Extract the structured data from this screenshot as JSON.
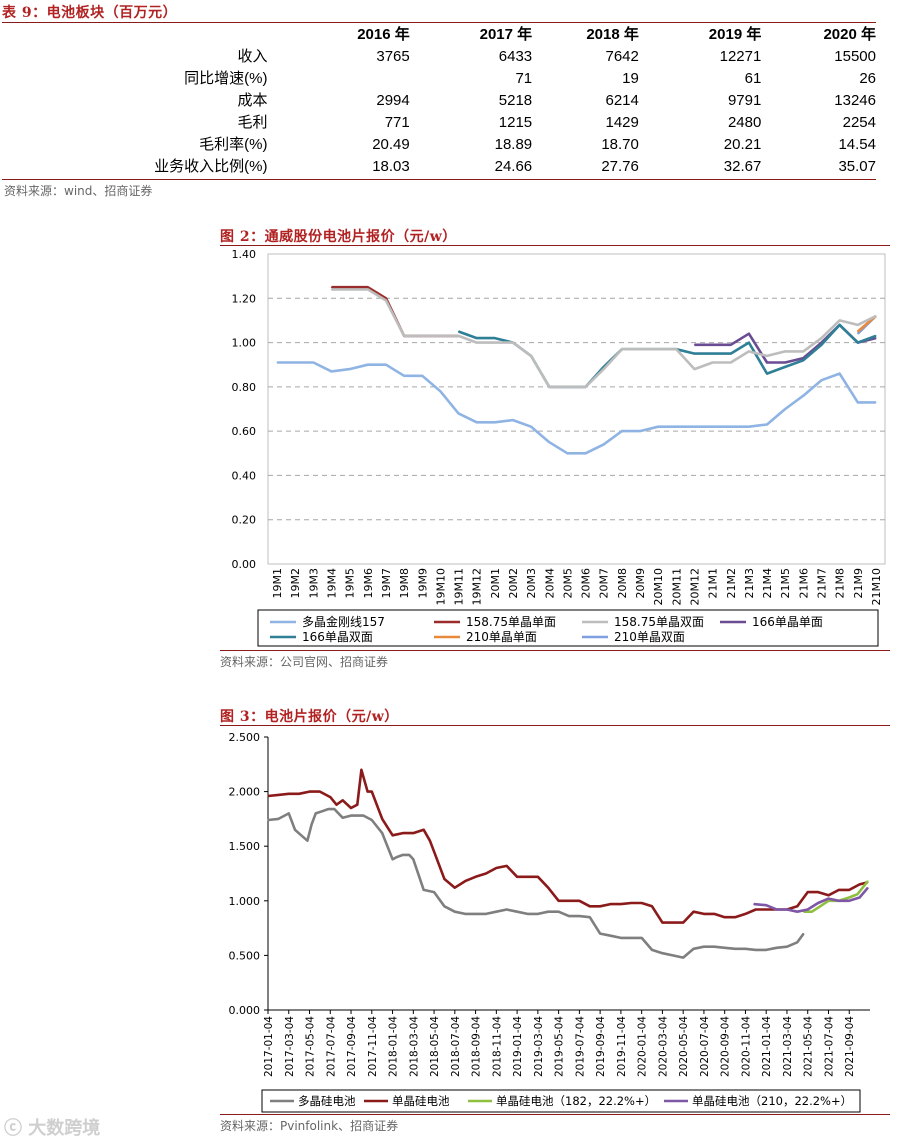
{
  "table": {
    "title": "表 9：电池板块（百万元）",
    "columns": [
      "2016 年",
      "2017 年",
      "2018 年",
      "2019 年",
      "2020 年"
    ],
    "rows": [
      {
        "label": "收入",
        "values": [
          "3765",
          "6433",
          "7642",
          "12271",
          "15500"
        ]
      },
      {
        "label": "同比增速(%)",
        "values": [
          "",
          "71",
          "19",
          "61",
          "26"
        ]
      },
      {
        "label": "成本",
        "values": [
          "2994",
          "5218",
          "6214",
          "9791",
          "13246"
        ]
      },
      {
        "label": "毛利",
        "values": [
          "771",
          "1215",
          "1429",
          "2480",
          "2254"
        ]
      },
      {
        "label": "毛利率(%)",
        "values": [
          "20.49",
          "18.89",
          "18.70",
          "20.21",
          "14.54"
        ]
      },
      {
        "label": "业务收入比例(%)",
        "values": [
          "18.03",
          "24.66",
          "27.76",
          "32.67",
          "35.07"
        ]
      }
    ],
    "source": "资料来源：wind、招商证券"
  },
  "figure2": {
    "title": "图 2：通威股份电池片报价（元/w）",
    "source": "资料来源：公司官网、招商证券"
  },
  "figure3": {
    "title": "图 3：电池片报价（元/w）",
    "source": "资料来源：Pvinfolink、招商证券"
  },
  "watermark": "大数跨境",
  "colors": {
    "accent": "#b22222",
    "s_poly157": "#8fb4e3",
    "s_15875_mono": "#9b2c2c",
    "s_15875_bi": "#bdbdbd",
    "s_166_mono": "#6a4c93",
    "s_166_bi": "#2f7f96",
    "s_210_mono": "#e8893b",
    "s_210_bi": "#7f9fe0",
    "s_poly": "#7f7f7f",
    "s_mono": "#8b1a1a",
    "s_mono182": "#8fbf3f",
    "s_mono210": "#7e57a6"
  },
  "chart_data": [
    {
      "type": "line",
      "title": "通威股份电池片报价（元/w）",
      "ylim": [
        0,
        1.4
      ],
      "yticks": [
        "0.00",
        "0.20",
        "0.40",
        "0.60",
        "0.80",
        "1.00",
        "1.20",
        "1.40"
      ],
      "categories": [
        "19M1",
        "19M2",
        "19M3",
        "19M4",
        "19M5",
        "19M6",
        "19M7",
        "19M8",
        "19M9",
        "19M10",
        "19M11",
        "19M12",
        "20M1",
        "20M2",
        "20M3",
        "20M4",
        "20M5",
        "20M6",
        "20M7",
        "20M8",
        "20M9",
        "20M10",
        "20M11",
        "20M12",
        "21M1",
        "21M2",
        "21M3",
        "21M4",
        "21M5",
        "21M6",
        "21M7",
        "21M8",
        "21M9",
        "21M10"
      ],
      "series": [
        {
          "name": "多晶金刚线157",
          "color_key": "s_poly157",
          "values": [
            0.91,
            0.91,
            0.91,
            0.87,
            0.88,
            0.9,
            0.9,
            0.85,
            0.85,
            0.78,
            0.68,
            0.64,
            0.64,
            0.65,
            0.62,
            0.55,
            0.5,
            0.5,
            0.54,
            0.6,
            0.6,
            0.62,
            0.62,
            0.62,
            0.62,
            0.62,
            0.62,
            0.63,
            0.7,
            0.76,
            0.83,
            0.86,
            0.73,
            0.73
          ]
        },
        {
          "name": "158.75单晶单面",
          "color_key": "s_15875_mono",
          "values": [
            null,
            null,
            null,
            1.25,
            1.25,
            1.25,
            1.2,
            1.03,
            1.03,
            1.03,
            1.03,
            null,
            null,
            null,
            null,
            null,
            null,
            null,
            null,
            null,
            null,
            null,
            null,
            null,
            null,
            null,
            null,
            null,
            null,
            null,
            null,
            null,
            null,
            null
          ]
        },
        {
          "name": "158.75单晶双面",
          "color_key": "s_15875_bi",
          "values": [
            null,
            null,
            null,
            1.24,
            1.24,
            1.24,
            1.19,
            1.03,
            1.03,
            1.03,
            1.03,
            1.0,
            1.0,
            1.0,
            0.94,
            0.8,
            0.8,
            0.8,
            0.88,
            0.97,
            0.97,
            0.97,
            0.97,
            0.88,
            0.91,
            0.91,
            0.96,
            0.94,
            0.96,
            0.96,
            1.02,
            1.1,
            1.08,
            1.12
          ]
        },
        {
          "name": "166单晶单面",
          "color_key": "s_166_mono",
          "values": [
            null,
            null,
            null,
            null,
            null,
            null,
            null,
            null,
            null,
            null,
            null,
            null,
            null,
            null,
            null,
            null,
            null,
            null,
            null,
            null,
            null,
            null,
            null,
            0.99,
            0.99,
            0.99,
            1.04,
            0.91,
            0.91,
            0.93,
            1.0,
            1.08,
            1.0,
            1.02
          ]
        },
        {
          "name": "166单晶双面",
          "color_key": "s_166_bi",
          "values": [
            null,
            null,
            null,
            null,
            null,
            null,
            null,
            null,
            null,
            null,
            1.05,
            1.02,
            1.02,
            1.0,
            0.94,
            0.8,
            0.8,
            0.8,
            0.89,
            0.97,
            0.97,
            0.97,
            0.97,
            0.95,
            0.95,
            0.95,
            1.0,
            0.86,
            0.89,
            0.92,
            0.99,
            1.08,
            1.0,
            1.03
          ]
        },
        {
          "name": "210单晶单面",
          "color_key": "s_210_mono",
          "values": [
            null,
            null,
            null,
            null,
            null,
            null,
            null,
            null,
            null,
            null,
            null,
            null,
            null,
            null,
            null,
            null,
            null,
            null,
            null,
            null,
            null,
            null,
            null,
            null,
            null,
            null,
            null,
            null,
            null,
            null,
            null,
            null,
            1.05,
            1.12
          ]
        },
        {
          "name": "210单晶双面",
          "color_key": "s_210_bi",
          "values": [
            null,
            null,
            null,
            null,
            null,
            null,
            null,
            null,
            null,
            null,
            null,
            null,
            null,
            null,
            null,
            null,
            null,
            null,
            null,
            null,
            null,
            null,
            null,
            null,
            null,
            null,
            null,
            null,
            null,
            null,
            null,
            null,
            1.04,
            1.12
          ]
        }
      ],
      "legend": "bottom"
    },
    {
      "type": "line",
      "title": "电池片报价（元/w）",
      "ylim": [
        0,
        2.5
      ],
      "yticks": [
        "0.000",
        "0.500",
        "1.000",
        "1.500",
        "2.000",
        "2.500"
      ],
      "x_tick_labels": [
        "2017-01-04",
        "2017-03-04",
        "2017-05-04",
        "2017-07-04",
        "2017-09-04",
        "2017-11-04",
        "2018-01-04",
        "2018-03-04",
        "2018-05-04",
        "2018-07-04",
        "2018-09-04",
        "2018-11-04",
        "2019-01-04",
        "2019-03-04",
        "2019-05-04",
        "2019-07-04",
        "2019-09-04",
        "2019-11-04",
        "2020-01-04",
        "2020-03-04",
        "2020-05-04",
        "2020-07-04",
        "2020-09-04",
        "2020-11-04",
        "2021-01-04",
        "2021-03-04",
        "2021-05-04",
        "2021-07-04",
        "2021-09-04"
      ],
      "series": [
        {
          "name": "多晶硅电池",
          "color_key": "s_poly",
          "x": [
            0,
            0.5,
            1,
            1.3,
            1.6,
            1.9,
            2.1,
            2.3,
            2.6,
            2.9,
            3.2,
            3.6,
            4,
            4.3,
            4.6,
            5,
            5.5,
            6,
            6.2,
            6.5,
            6.8,
            7,
            7.5,
            8,
            8.5,
            9,
            9.5,
            10,
            10.5,
            11,
            11.5,
            12,
            12.5,
            13,
            13.5,
            14,
            14.5,
            15,
            15.5,
            16,
            16.5,
            17,
            17.5,
            18,
            18.5,
            19,
            19.5,
            20,
            20.5,
            21,
            21.5,
            22,
            22.5,
            23,
            23.5,
            24,
            24.5,
            25,
            25.5,
            25.8
          ],
          "values": [
            1.74,
            1.75,
            1.8,
            1.65,
            1.6,
            1.55,
            1.7,
            1.8,
            1.82,
            1.84,
            1.84,
            1.76,
            1.78,
            1.78,
            1.78,
            1.74,
            1.62,
            1.38,
            1.4,
            1.42,
            1.42,
            1.38,
            1.1,
            1.08,
            0.95,
            0.9,
            0.88,
            0.88,
            0.88,
            0.9,
            0.92,
            0.9,
            0.88,
            0.88,
            0.9,
            0.9,
            0.86,
            0.86,
            0.85,
            0.7,
            0.68,
            0.66,
            0.66,
            0.66,
            0.55,
            0.52,
            0.5,
            0.48,
            0.56,
            0.58,
            0.58,
            0.57,
            0.56,
            0.56,
            0.55,
            0.55,
            0.57,
            0.58,
            0.62,
            0.7
          ]
        },
        {
          "name": "单晶硅电池",
          "color_key": "s_mono",
          "x": [
            0,
            0.5,
            1,
            1.5,
            2,
            2.5,
            3,
            3.3,
            3.6,
            4,
            4.3,
            4.5,
            4.8,
            5,
            5.5,
            6,
            6.5,
            7,
            7.5,
            7.8,
            8,
            8.5,
            9,
            9.5,
            10,
            10.5,
            11,
            11.5,
            12,
            12.5,
            13,
            13.5,
            14,
            14.5,
            15,
            15.5,
            16,
            16.5,
            17,
            17.5,
            18,
            18.5,
            19,
            19.5,
            20,
            20.5,
            21,
            21.5,
            22,
            22.5,
            23,
            23.5,
            24,
            24.5,
            25,
            25.5,
            26,
            26.5,
            27,
            27.5,
            28,
            28.5,
            28.9
          ],
          "values": [
            1.96,
            1.97,
            1.98,
            1.98,
            2.0,
            2.0,
            1.95,
            1.88,
            1.92,
            1.85,
            1.88,
            2.2,
            2.0,
            2.0,
            1.75,
            1.6,
            1.62,
            1.62,
            1.65,
            1.55,
            1.45,
            1.2,
            1.12,
            1.18,
            1.22,
            1.25,
            1.3,
            1.32,
            1.22,
            1.22,
            1.22,
            1.12,
            1.0,
            1.0,
            1.0,
            0.95,
            0.95,
            0.97,
            0.97,
            0.98,
            0.98,
            0.95,
            0.8,
            0.8,
            0.8,
            0.9,
            0.88,
            0.88,
            0.85,
            0.85,
            0.88,
            0.92,
            0.92,
            0.92,
            0.92,
            0.95,
            1.08,
            1.08,
            1.05,
            1.1,
            1.1,
            1.15,
            1.17
          ]
        },
        {
          "name": "单晶硅电池（182，22.2%+）",
          "color_key": "s_mono182",
          "x": [
            25.8,
            26.2,
            26.6,
            27,
            27.5,
            28,
            28.4,
            28.9
          ],
          "values": [
            0.9,
            0.9,
            0.95,
            1.0,
            1.0,
            1.03,
            1.06,
            1.18
          ]
        },
        {
          "name": "单晶硅电池（210，22.2%+）",
          "color_key": "s_mono210",
          "x": [
            23.4,
            24,
            24.5,
            25,
            25.5,
            26,
            26.5,
            27,
            27.5,
            28,
            28.5,
            28.9
          ],
          "values": [
            0.97,
            0.96,
            0.92,
            0.92,
            0.9,
            0.92,
            0.98,
            1.02,
            1.0,
            1.0,
            1.03,
            1.12
          ]
        }
      ],
      "legend": "bottom"
    }
  ]
}
